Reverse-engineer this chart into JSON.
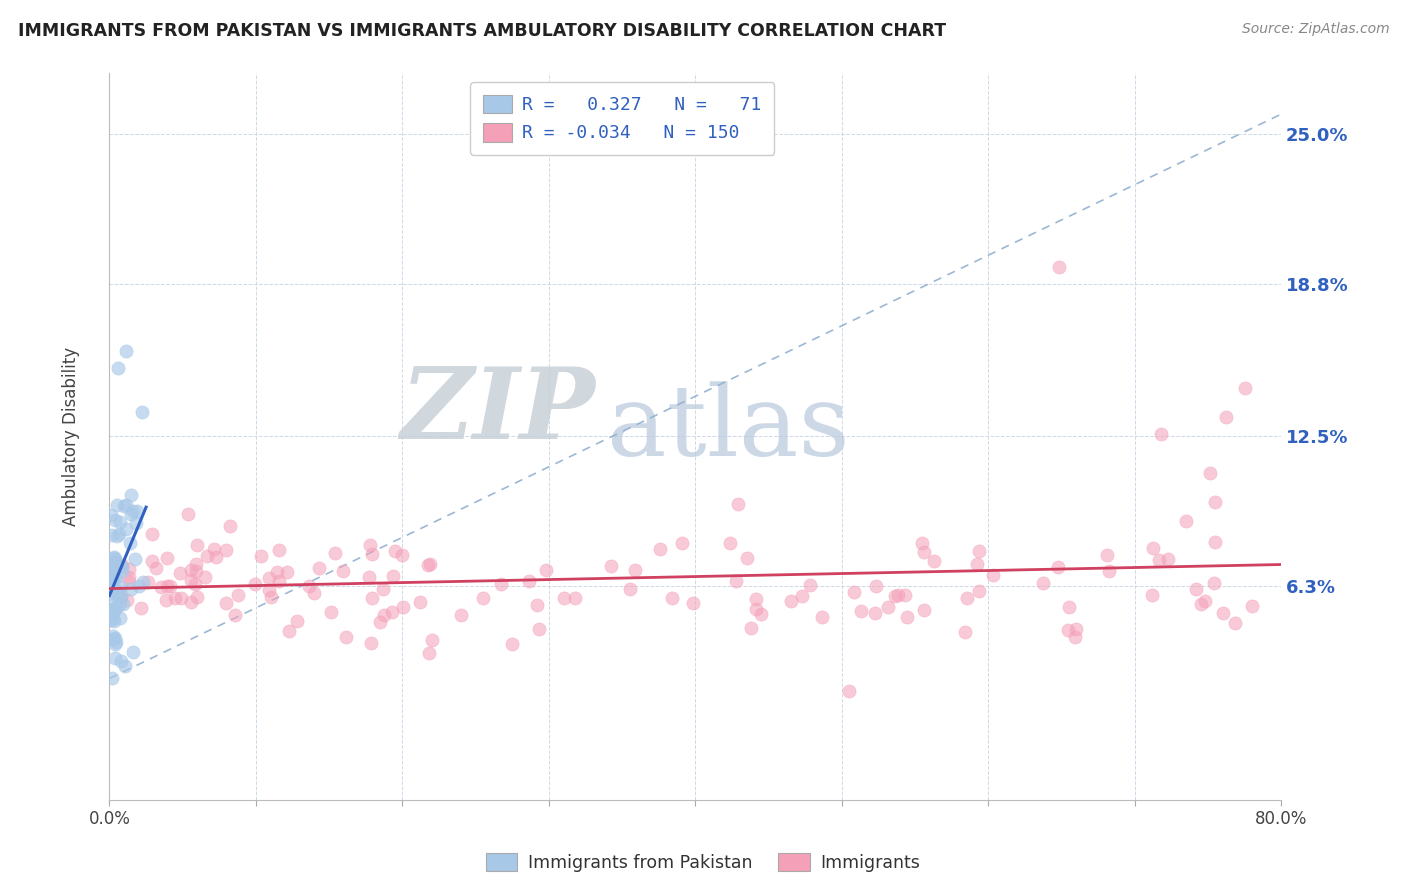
{
  "title": "IMMIGRANTS FROM PAKISTAN VS IMMIGRANTS AMBULATORY DISABILITY CORRELATION CHART",
  "source": "Source: ZipAtlas.com",
  "ylabel_label": "Ambulatory Disability",
  "ylabel_ticks": [
    "6.3%",
    "12.5%",
    "18.8%",
    "25.0%"
  ],
  "ylabel_values": [
    0.063,
    0.125,
    0.188,
    0.25
  ],
  "xlim": [
    0.0,
    0.8
  ],
  "ylim": [
    -0.025,
    0.275
  ],
  "legend1_R": "0.327",
  "legend1_N": "71",
  "legend2_R": "-0.034",
  "legend2_N": "150",
  "color_blue": "#A8C8E8",
  "color_pink": "#F4A0B8",
  "color_blue_line": "#3060C0",
  "color_pink_line": "#D04060",
  "color_dashed": "#90B0D0",
  "watermark_ZIP": "ZIP",
  "watermark_atlas": "atlas"
}
